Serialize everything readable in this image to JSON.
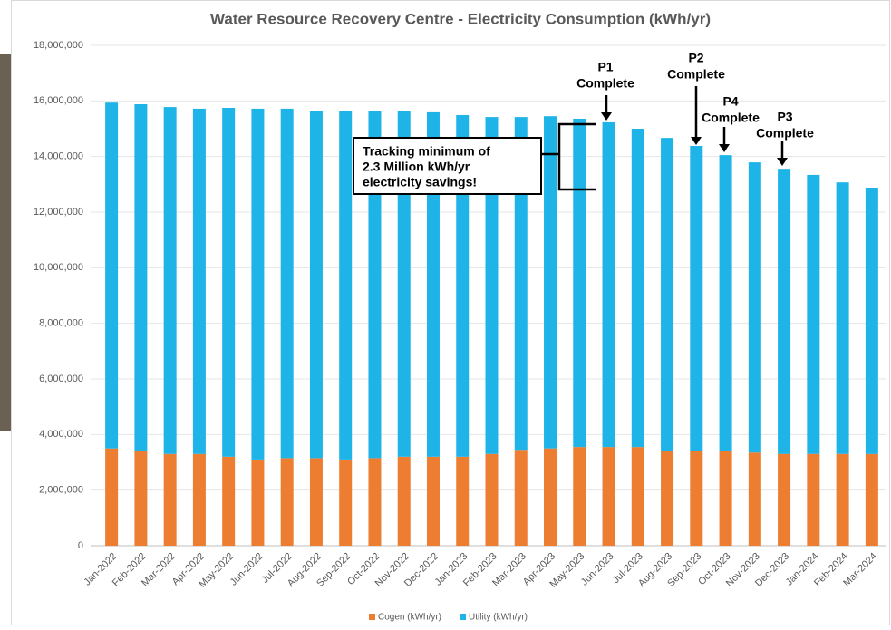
{
  "chart_data": {
    "type": "stacked_bar",
    "title": "Water Resource Recovery Centre  - Electricity Consumption (kWh/yr)",
    "categories": [
      "Jan-2022",
      "Feb-2022",
      "Mar-2022",
      "Apr-2022",
      "May-2022",
      "Jun-2022",
      "Jul-2022",
      "Aug-2022",
      "Sep-2022",
      "Oct-2022",
      "Nov-2022",
      "Dec-2022",
      "Jan-2023",
      "Feb-2023",
      "Mar-2023",
      "Apr-2023",
      "May-2023",
      "Jun-2023",
      "Jul-2023",
      "Aug-2023",
      "Sep-2023",
      "Oct-2023",
      "Nov-2023",
      "Dec-2023",
      "Jan-2024",
      "Feb-2024",
      "Mar-2024"
    ],
    "series": [
      {
        "name": "Cogen (kWh/yr)",
        "color": "#ed7d31",
        "values": [
          3500000,
          3400000,
          3300000,
          3300000,
          3200000,
          3100000,
          3150000,
          3150000,
          3100000,
          3150000,
          3200000,
          3200000,
          3200000,
          3300000,
          3450000,
          3500000,
          3550000,
          3550000,
          3550000,
          3400000,
          3400000,
          3400000,
          3350000,
          3300000,
          3300000,
          3300000,
          3300000
        ]
      },
      {
        "name": "Utility (kWh/yr)",
        "color": "#1fb4e8",
        "values": [
          12440000,
          12480000,
          12480000,
          12420000,
          12550000,
          12620000,
          12570000,
          12500000,
          12520000,
          12500000,
          12450000,
          12390000,
          12290000,
          12120000,
          11970000,
          11950000,
          11810000,
          11680000,
          11450000,
          11270000,
          10980000,
          10650000,
          10440000,
          10260000,
          10040000,
          9770000,
          9580000
        ]
      }
    ],
    "ylim": [
      0,
      18000000
    ],
    "yticks": [
      {
        "value": 0,
        "label": "0"
      },
      {
        "value": 2000000,
        "label": "2,000,000"
      },
      {
        "value": 4000000,
        "label": "4,000,000"
      },
      {
        "value": 6000000,
        "label": "6,000,000"
      },
      {
        "value": 8000000,
        "label": "8,000,000"
      },
      {
        "value": 10000000,
        "label": "10,000,000"
      },
      {
        "value": 12000000,
        "label": "12,000,000"
      },
      {
        "value": 14000000,
        "label": "14,000,000"
      },
      {
        "value": 16000000,
        "label": "16,000,000"
      },
      {
        "value": 18000000,
        "label": "18,000,000"
      }
    ],
    "grid": true,
    "legend": "bottom",
    "annotations": [
      {
        "lines": [
          "P1",
          "Complete"
        ]
      },
      {
        "lines": [
          "P2",
          "Complete"
        ]
      },
      {
        "lines": [
          "P4",
          "Complete"
        ]
      },
      {
        "lines": [
          "P3",
          "Complete"
        ]
      },
      {
        "lines": [
          "Tracking minimum of",
          "2.3 Million kWh/yr",
          "electricity savings!"
        ]
      }
    ]
  }
}
